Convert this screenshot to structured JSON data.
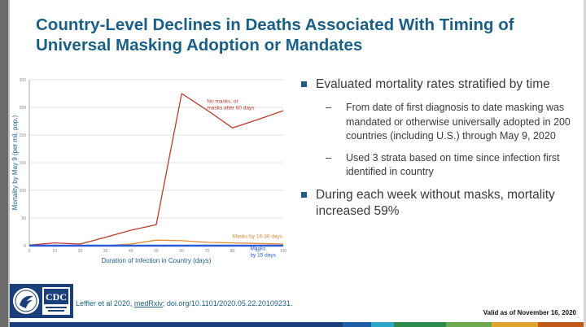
{
  "slide": {
    "title": "Country-Level Declines in Deaths Associated With Timing of Universal Masking Adoption or Mandates",
    "bullets": [
      {
        "text": "Evaluated mortality rates stratified by time",
        "sub": [
          "From date of first diagnosis to date masking was mandated or otherwise universally adopted in 200 countries (including U.S.) through May 9, 2020",
          "Used 3 strata based on time since infection first identified in country"
        ]
      },
      {
        "text": "During each week without masks, mortality increased 59%",
        "sub": []
      }
    ],
    "citation": {
      "prefix": "Leffler et al 2020, ",
      "link": "medRxiv",
      "suffix": "; doi.org/10.1101/2020.05.22.20109231."
    },
    "valid_text": "Valid as of November 16, 2020",
    "logos": [
      "hhs-seal-icon",
      "cdc-logo-icon"
    ],
    "colors": {
      "title": "#1a5f87",
      "bullet": "#1a5f87",
      "bottom_bar": [
        "#1a3f7a",
        "#1e5fa8",
        "#2aa6c8",
        "#2e8a4a",
        "#6ba84f",
        "#e0a42c",
        "#c25a1a"
      ]
    }
  },
  "chart_data": {
    "type": "line",
    "xlabel": "Duration of Infection in Country (days)",
    "ylabel": "Mortality by May 9 (per mil. pop.)",
    "xlim": [
      0,
      100
    ],
    "ylim": [
      0,
      300
    ],
    "x_ticks": [
      0,
      10,
      20,
      30,
      40,
      50,
      60,
      70,
      80,
      90,
      100
    ],
    "y_ticks": [
      0,
      50,
      100,
      150,
      200,
      250,
      300
    ],
    "grid": "horizontal",
    "series": [
      {
        "name": "No masks, or masks after 60 days",
        "color": "#c0392b",
        "x": [
          0,
          10,
          20,
          30,
          40,
          50,
          60,
          70,
          80,
          90,
          100
        ],
        "y": [
          1,
          5,
          3,
          15,
          28,
          38,
          275,
          245,
          213,
          228,
          244
        ]
      },
      {
        "name": "Masks by 16-30 days",
        "color": "#e08a2c",
        "x": [
          0,
          10,
          20,
          30,
          40,
          50,
          60,
          70,
          80,
          90,
          100
        ],
        "y": [
          0,
          0,
          0,
          0,
          3,
          10,
          9,
          6,
          5,
          4,
          3
        ]
      },
      {
        "name": "Masks by 15 days",
        "color": "#2a5bd7",
        "x": [
          0,
          10,
          20,
          30,
          40,
          50,
          60,
          70,
          80,
          90,
          100
        ],
        "y": [
          0,
          0,
          0,
          0,
          0,
          0,
          0,
          0,
          0,
          0,
          0
        ]
      }
    ],
    "annotations": [
      {
        "lines": [
          "No masks, or",
          "masks after 60  days"
        ],
        "color": "#c0392b",
        "x": 70,
        "y": 258
      },
      {
        "lines": [
          "Masks by 16-30 days"
        ],
        "color": "#e08a2c",
        "x": 80,
        "y": 14
      },
      {
        "lines": [
          "Masks",
          "by 15 days"
        ],
        "color": "#2a5bd7",
        "x": 87,
        "y": -8
      }
    ]
  }
}
